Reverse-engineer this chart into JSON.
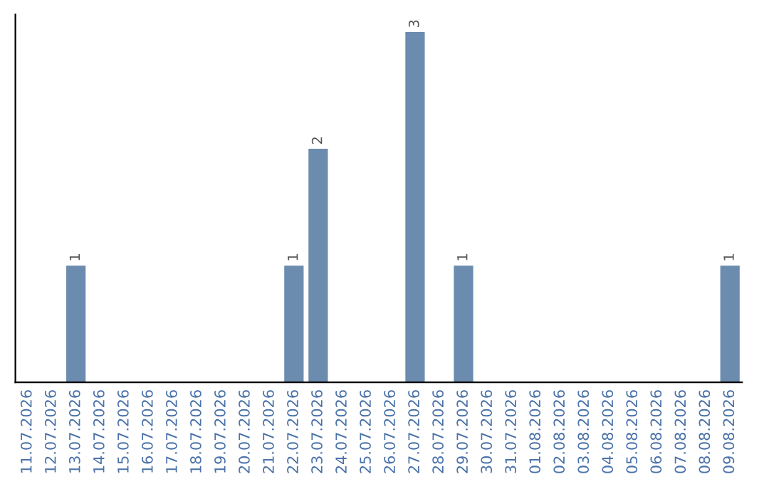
{
  "chart_data": {
    "type": "bar",
    "categories": [
      "11.07.2026",
      "12.07.2026",
      "13.07.2026",
      "14.07.2026",
      "15.07.2026",
      "16.07.2026",
      "17.07.2026",
      "18.07.2026",
      "19.07.2026",
      "20.07.2026",
      "21.07.2026",
      "22.07.2026",
      "23.07.2026",
      "24.07.2026",
      "25.07.2026",
      "26.07.2026",
      "27.07.2026",
      "28.07.2026",
      "29.07.2026",
      "30.07.2026",
      "31.07.2026",
      "01.08.2026",
      "02.08.2026",
      "03.08.2026",
      "04.08.2026",
      "05.08.2026",
      "06.08.2026",
      "07.08.2026",
      "08.08.2026",
      "09.08.2026"
    ],
    "values": [
      0,
      0,
      1,
      0,
      0,
      0,
      0,
      0,
      0,
      0,
      0,
      1,
      2,
      0,
      0,
      0,
      3,
      0,
      1,
      0,
      0,
      0,
      0,
      0,
      0,
      0,
      0,
      0,
      0,
      1
    ],
    "value_labels": [
      null,
      null,
      "1",
      null,
      null,
      null,
      null,
      null,
      null,
      null,
      null,
      "1",
      "2",
      null,
      null,
      null,
      "3",
      null,
      "1",
      null,
      null,
      null,
      null,
      null,
      null,
      null,
      null,
      null,
      null,
      "1"
    ],
    "color": "#6b8cae",
    "tick_labels": "x",
    "grid": false,
    "legend": false
  }
}
